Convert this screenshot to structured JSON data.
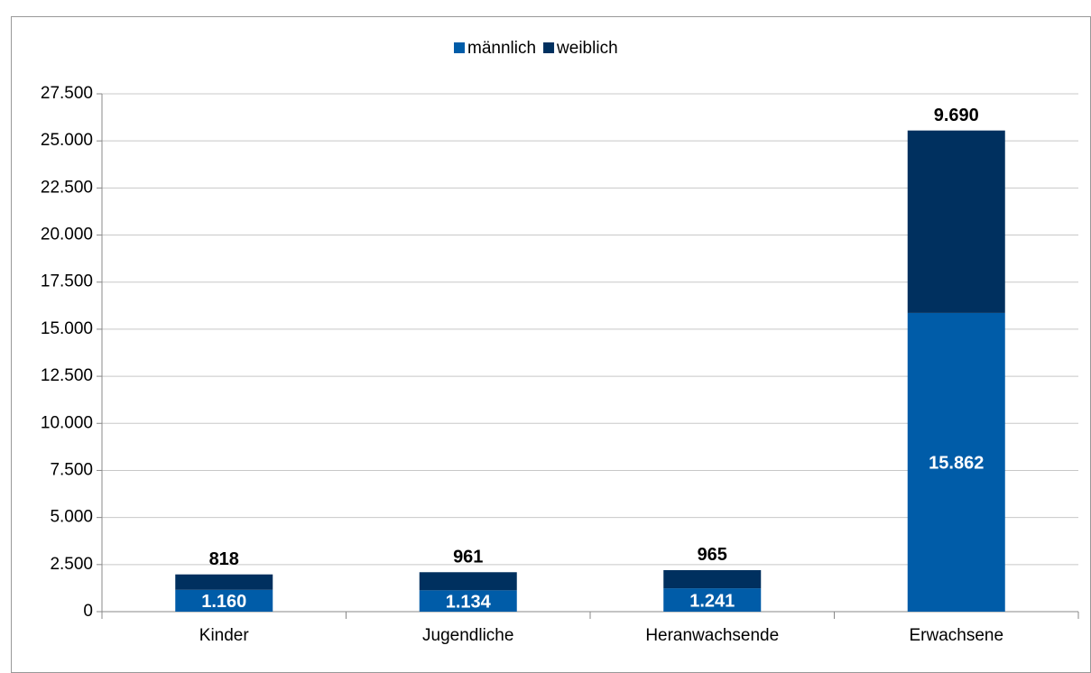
{
  "chart_data": {
    "type": "stacked_bar",
    "categories": [
      "Kinder",
      "Jugendliche",
      "Heranwachsende",
      "Erwachsene"
    ],
    "series": [
      {
        "name": "männlich",
        "color": "#005ca8",
        "values": [
          1160,
          1134,
          1241,
          15862
        ],
        "value_labels": [
          "1.160",
          "1.134",
          "1.241",
          "15.862"
        ]
      },
      {
        "name": "weiblich",
        "color": "#00305f",
        "values": [
          818,
          961,
          965,
          9690
        ],
        "value_labels": [
          "818",
          "961",
          "965",
          "9.690"
        ]
      }
    ],
    "ylim": [
      0,
      27500
    ],
    "yticks": [
      0,
      {
        "value": 2500,
        "label": "2.500"
      },
      {
        "value": 5000,
        "label": "5.000"
      },
      {
        "value": 7500,
        "label": "7.500"
      },
      {
        "value": 10000,
        "label": "10.000"
      },
      {
        "value": 12500,
        "label": "12.500"
      },
      {
        "value": 15000,
        "label": "15.000"
      },
      {
        "value": 17500,
        "label": "17.500"
      },
      {
        "value": 20000,
        "label": "20.000"
      },
      {
        "value": 22500,
        "label": "22.500"
      },
      {
        "value": 25000,
        "label": "25.000"
      },
      {
        "value": 27500,
        "label": "27.500"
      }
    ],
    "grid": true,
    "legend": "top"
  }
}
